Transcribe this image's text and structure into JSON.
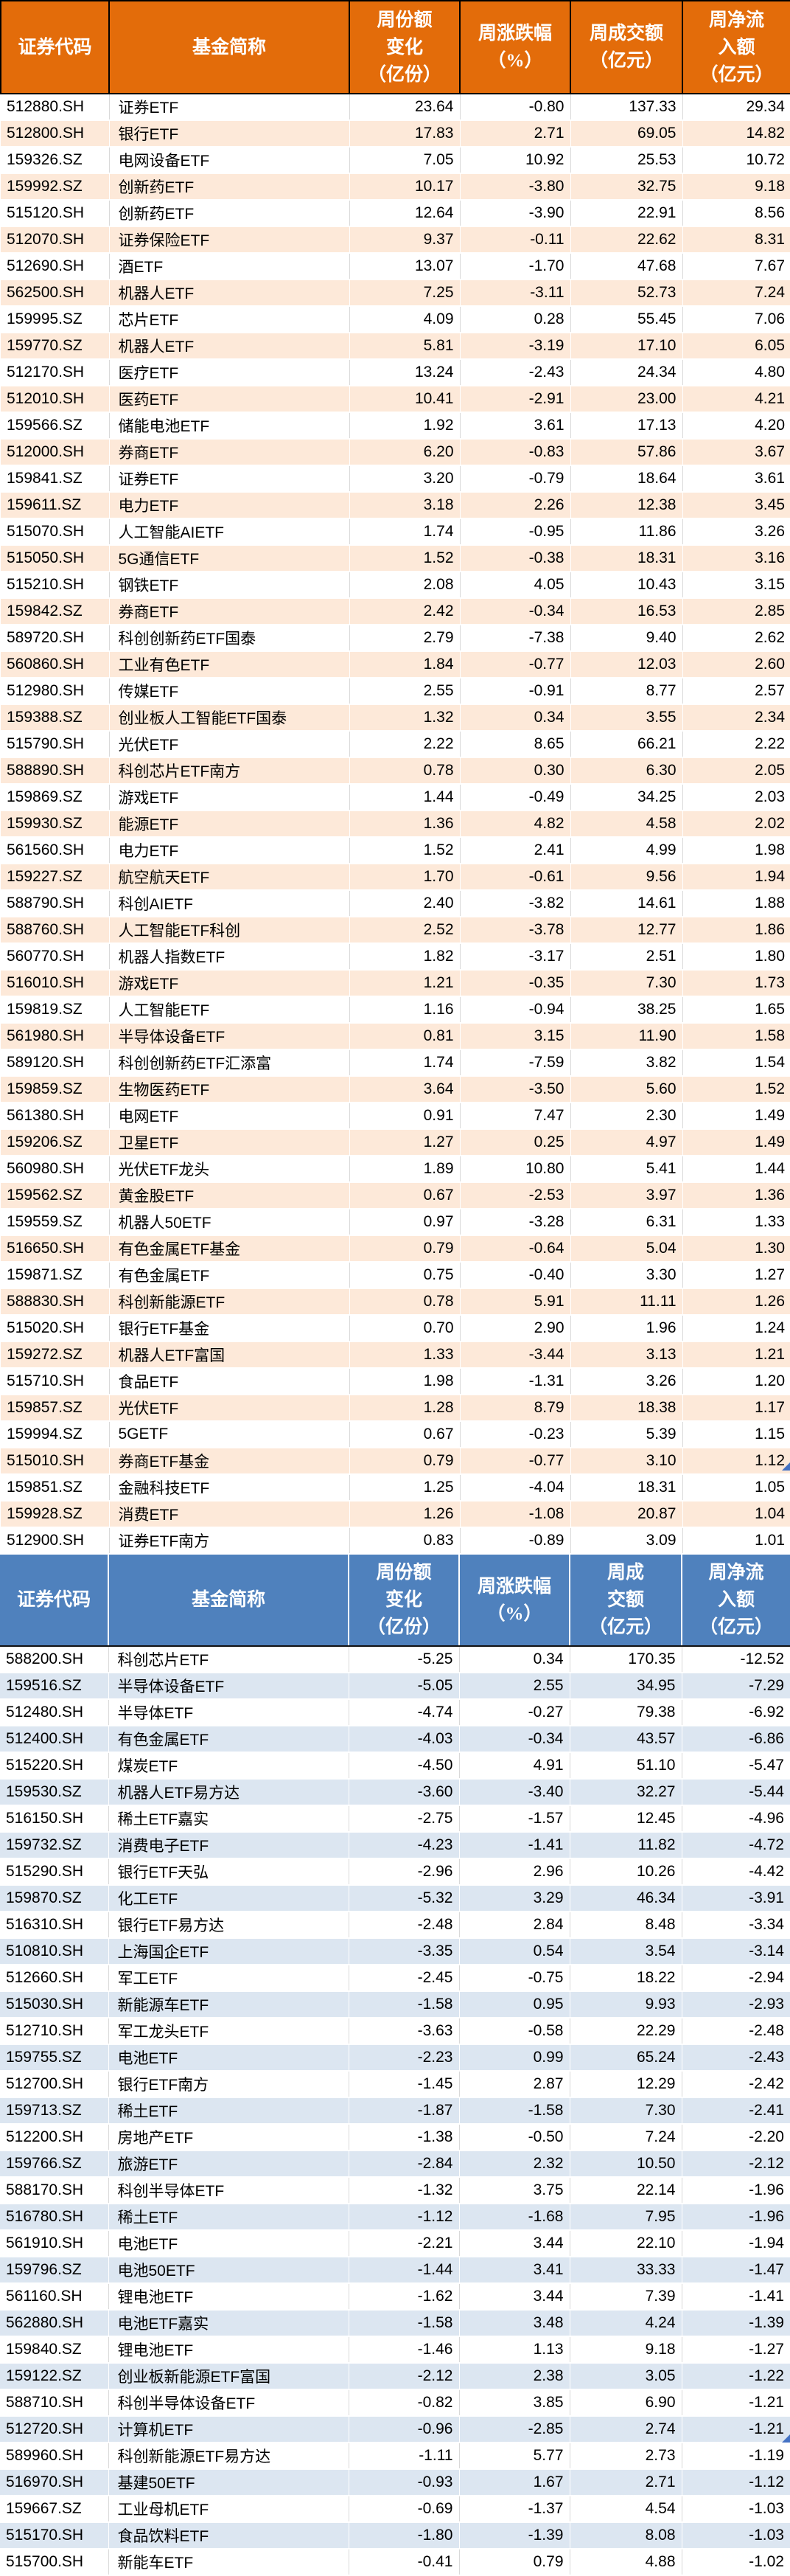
{
  "page": {
    "artifact_color": "#4472c4",
    "gridline_color": "#d9d9d9"
  },
  "tables": [
    {
      "id": "weekly-inflow-table",
      "colors": {
        "header_bg": "#e36c0a",
        "header_text": "#ffffff",
        "stripe": "#fde9d9"
      },
      "headers": [
        {
          "lines": [
            "证券代码"
          ]
        },
        {
          "lines": [
            "基金简称"
          ]
        },
        {
          "lines": [
            "周份额",
            "变化",
            "（亿份）"
          ]
        },
        {
          "lines": [
            "周涨跌幅",
            "（%）"
          ]
        },
        {
          "lines": [
            "周成交额",
            "（亿元）"
          ]
        },
        {
          "lines": [
            "周净流",
            "入额",
            "（亿元）"
          ]
        }
      ],
      "rows": [
        [
          "512880.SH",
          "证券ETF",
          "23.64",
          "-0.80",
          "137.33",
          "29.34"
        ],
        [
          "512800.SH",
          "银行ETF",
          "17.83",
          "2.71",
          "69.05",
          "14.82"
        ],
        [
          "159326.SZ",
          "电网设备ETF",
          "7.05",
          "10.92",
          "25.53",
          "10.72"
        ],
        [
          "159992.SZ",
          "创新药ETF",
          "10.17",
          "-3.80",
          "32.75",
          "9.18"
        ],
        [
          "515120.SH",
          "创新药ETF",
          "12.64",
          "-3.90",
          "22.91",
          "8.56"
        ],
        [
          "512070.SH",
          "证券保险ETF",
          "9.37",
          "-0.11",
          "22.62",
          "8.31"
        ],
        [
          "512690.SH",
          "酒ETF",
          "13.07",
          "-1.70",
          "47.68",
          "7.67"
        ],
        [
          "562500.SH",
          "机器人ETF",
          "7.25",
          "-3.11",
          "52.73",
          "7.24"
        ],
        [
          "159995.SZ",
          "芯片ETF",
          "4.09",
          "0.28",
          "55.45",
          "7.06"
        ],
        [
          "159770.SZ",
          "机器人ETF",
          "5.81",
          "-3.19",
          "17.10",
          "6.05"
        ],
        [
          "512170.SH",
          "医疗ETF",
          "13.24",
          "-2.43",
          "24.34",
          "4.80"
        ],
        [
          "512010.SH",
          "医药ETF",
          "10.41",
          "-2.91",
          "23.00",
          "4.21"
        ],
        [
          "159566.SZ",
          "储能电池ETF",
          "1.92",
          "3.61",
          "17.13",
          "4.20"
        ],
        [
          "512000.SH",
          "券商ETF",
          "6.20",
          "-0.83",
          "57.86",
          "3.67"
        ],
        [
          "159841.SZ",
          "证券ETF",
          "3.20",
          "-0.79",
          "18.64",
          "3.61"
        ],
        [
          "159611.SZ",
          "电力ETF",
          "3.18",
          "2.26",
          "12.38",
          "3.45"
        ],
        [
          "515070.SH",
          "人工智能AIETF",
          "1.74",
          "-0.95",
          "11.86",
          "3.26"
        ],
        [
          "515050.SH",
          "5G通信ETF",
          "1.52",
          "-0.38",
          "18.31",
          "3.16"
        ],
        [
          "515210.SH",
          "钢铁ETF",
          "2.08",
          "4.05",
          "10.43",
          "3.15"
        ],
        [
          "159842.SZ",
          "券商ETF",
          "2.42",
          "-0.34",
          "16.53",
          "2.85"
        ],
        [
          "589720.SH",
          "科创创新药ETF国泰",
          "2.79",
          "-7.38",
          "9.40",
          "2.62"
        ],
        [
          "560860.SH",
          "工业有色ETF",
          "1.84",
          "-0.77",
          "12.03",
          "2.60"
        ],
        [
          "512980.SH",
          "传媒ETF",
          "2.55",
          "-0.91",
          "8.77",
          "2.57"
        ],
        [
          "159388.SZ",
          "创业板人工智能ETF国泰",
          "1.32",
          "0.34",
          "3.55",
          "2.34"
        ],
        [
          "515790.SH",
          "光伏ETF",
          "2.22",
          "8.65",
          "66.21",
          "2.22"
        ],
        [
          "588890.SH",
          "科创芯片ETF南方",
          "0.78",
          "0.30",
          "6.30",
          "2.05"
        ],
        [
          "159869.SZ",
          "游戏ETF",
          "1.44",
          "-0.49",
          "34.25",
          "2.03"
        ],
        [
          "159930.SZ",
          "能源ETF",
          "1.36",
          "4.82",
          "4.58",
          "2.02"
        ],
        [
          "561560.SH",
          "电力ETF",
          "1.52",
          "2.41",
          "4.99",
          "1.98"
        ],
        [
          "159227.SZ",
          "航空航天ETF",
          "1.70",
          "-0.61",
          "9.56",
          "1.94"
        ],
        [
          "588790.SH",
          "科创AIETF",
          "2.40",
          "-3.82",
          "14.61",
          "1.88"
        ],
        [
          "588760.SH",
          "人工智能ETF科创",
          "2.52",
          "-3.78",
          "12.77",
          "1.86"
        ],
        [
          "560770.SH",
          "机器人指数ETF",
          "1.82",
          "-3.17",
          "2.51",
          "1.80"
        ],
        [
          "516010.SH",
          "游戏ETF",
          "1.21",
          "-0.35",
          "7.30",
          "1.73"
        ],
        [
          "159819.SZ",
          "人工智能ETF",
          "1.16",
          "-0.94",
          "38.25",
          "1.65"
        ],
        [
          "561980.SH",
          "半导体设备ETF",
          "0.81",
          "3.15",
          "11.90",
          "1.58"
        ],
        [
          "589120.SH",
          "科创创新药ETF汇添富",
          "1.74",
          "-7.59",
          "3.82",
          "1.54"
        ],
        [
          "159859.SZ",
          "生物医药ETF",
          "3.64",
          "-3.50",
          "5.60",
          "1.52"
        ],
        [
          "561380.SH",
          "电网ETF",
          "0.91",
          "7.47",
          "2.30",
          "1.49"
        ],
        [
          "159206.SZ",
          "卫星ETF",
          "1.27",
          "0.25",
          "4.97",
          "1.49"
        ],
        [
          "560980.SH",
          "光伏ETF龙头",
          "1.89",
          "10.80",
          "5.41",
          "1.44"
        ],
        [
          "159562.SZ",
          "黄金股ETF",
          "0.67",
          "-2.53",
          "3.97",
          "1.36"
        ],
        [
          "159559.SZ",
          "机器人50ETF",
          "0.97",
          "-3.28",
          "6.31",
          "1.33"
        ],
        [
          "516650.SH",
          "有色金属ETF基金",
          "0.79",
          "-0.64",
          "5.04",
          "1.30"
        ],
        [
          "159871.SZ",
          "有色金属ETF",
          "0.75",
          "-0.40",
          "3.30",
          "1.27"
        ],
        [
          "588830.SH",
          "科创新能源ETF",
          "0.78",
          "5.91",
          "11.11",
          "1.26"
        ],
        [
          "515020.SH",
          "银行ETF基金",
          "0.70",
          "2.90",
          "1.96",
          "1.24"
        ],
        [
          "159272.SZ",
          "机器人ETF富国",
          "1.33",
          "-3.44",
          "3.13",
          "1.21"
        ],
        [
          "515710.SH",
          "食品ETF",
          "1.98",
          "-1.31",
          "3.26",
          "1.20"
        ],
        [
          "159857.SZ",
          "光伏ETF",
          "1.28",
          "8.79",
          "18.38",
          "1.17"
        ],
        [
          "159994.SZ",
          "5GETF",
          "0.67",
          "-0.23",
          "5.39",
          "1.15"
        ],
        [
          "515010.SH",
          "券商ETF基金",
          "0.79",
          "-0.77",
          "3.10",
          "1.12"
        ],
        [
          "159851.SZ",
          "金融科技ETF",
          "1.25",
          "-4.04",
          "18.31",
          "1.05"
        ],
        [
          "159928.SZ",
          "消费ETF",
          "1.26",
          "-1.08",
          "20.87",
          "1.04"
        ],
        [
          "512900.SH",
          "证券ETF南方",
          "0.83",
          "-0.89",
          "3.09",
          "1.01"
        ]
      ]
    },
    {
      "id": "weekly-outflow-table",
      "colors": {
        "header_bg": "#4f81bd",
        "header_text": "#ffffff",
        "stripe": "#dce6f1"
      },
      "headers": [
        {
          "lines": [
            "证券代码"
          ]
        },
        {
          "lines": [
            "基金简称"
          ]
        },
        {
          "lines": [
            "周份额",
            "变化",
            "（亿份）"
          ]
        },
        {
          "lines": [
            "周涨跌幅",
            "（%）"
          ]
        },
        {
          "lines": [
            "周成",
            "交额",
            "（亿元）"
          ]
        },
        {
          "lines": [
            "周净流",
            "入额",
            "（亿元）"
          ]
        }
      ],
      "rows": [
        [
          "588200.SH",
          "科创芯片ETF",
          "-5.25",
          "0.34",
          "170.35",
          "-12.52"
        ],
        [
          "159516.SZ",
          "半导体设备ETF",
          "-5.05",
          "2.55",
          "34.95",
          "-7.29"
        ],
        [
          "512480.SH",
          "半导体ETF",
          "-4.74",
          "-0.27",
          "79.38",
          "-6.92"
        ],
        [
          "512400.SH",
          "有色金属ETF",
          "-4.03",
          "-0.34",
          "43.57",
          "-6.86"
        ],
        [
          "515220.SH",
          "煤炭ETF",
          "-4.50",
          "4.91",
          "51.10",
          "-5.47"
        ],
        [
          "159530.SZ",
          "机器人ETF易方达",
          "-3.60",
          "-3.40",
          "32.27",
          "-5.44"
        ],
        [
          "516150.SH",
          "稀土ETF嘉实",
          "-2.75",
          "-1.57",
          "12.45",
          "-4.96"
        ],
        [
          "159732.SZ",
          "消费电子ETF",
          "-4.23",
          "-1.41",
          "11.82",
          "-4.72"
        ],
        [
          "515290.SH",
          "银行ETF天弘",
          "-2.96",
          "2.96",
          "10.26",
          "-4.42"
        ],
        [
          "159870.SZ",
          "化工ETF",
          "-5.32",
          "3.29",
          "46.34",
          "-3.91"
        ],
        [
          "516310.SH",
          "银行ETF易方达",
          "-2.48",
          "2.84",
          "8.48",
          "-3.34"
        ],
        [
          "510810.SH",
          "上海国企ETF",
          "-3.35",
          "0.54",
          "3.54",
          "-3.14"
        ],
        [
          "512660.SH",
          "军工ETF",
          "-2.45",
          "-0.75",
          "18.22",
          "-2.94"
        ],
        [
          "515030.SH",
          "新能源车ETF",
          "-1.58",
          "0.95",
          "9.93",
          "-2.93"
        ],
        [
          "512710.SH",
          "军工龙头ETF",
          "-3.63",
          "-0.58",
          "22.29",
          "-2.48"
        ],
        [
          "159755.SZ",
          "电池ETF",
          "-2.23",
          "0.99",
          "65.24",
          "-2.43"
        ],
        [
          "512700.SH",
          "银行ETF南方",
          "-1.45",
          "2.87",
          "12.29",
          "-2.42"
        ],
        [
          "159713.SZ",
          "稀土ETF",
          "-1.87",
          "-1.58",
          "7.30",
          "-2.41"
        ],
        [
          "512200.SH",
          "房地产ETF",
          "-1.38",
          "-0.50",
          "7.24",
          "-2.20"
        ],
        [
          "159766.SZ",
          "旅游ETF",
          "-2.84",
          "2.32",
          "10.50",
          "-2.12"
        ],
        [
          "588170.SH",
          "科创半导体ETF",
          "-1.32",
          "3.75",
          "22.14",
          "-1.96"
        ],
        [
          "516780.SH",
          "稀土ETF",
          "-1.12",
          "-1.68",
          "7.95",
          "-1.96"
        ],
        [
          "561910.SH",
          "电池ETF",
          "-2.21",
          "3.44",
          "22.10",
          "-1.94"
        ],
        [
          "159796.SZ",
          "电池50ETF",
          "-1.44",
          "3.41",
          "33.33",
          "-1.47"
        ],
        [
          "561160.SH",
          "锂电池ETF",
          "-1.62",
          "3.44",
          "7.39",
          "-1.41"
        ],
        [
          "562880.SH",
          "电池ETF嘉实",
          "-1.58",
          "3.48",
          "4.24",
          "-1.39"
        ],
        [
          "159840.SZ",
          "锂电池ETF",
          "-1.46",
          "1.13",
          "9.18",
          "-1.27"
        ],
        [
          "159122.SZ",
          "创业板新能源ETF富国",
          "-2.12",
          "2.38",
          "3.05",
          "-1.22"
        ],
        [
          "588710.SH",
          "科创半导体设备ETF",
          "-0.82",
          "3.85",
          "6.90",
          "-1.21"
        ],
        [
          "512720.SH",
          "计算机ETF",
          "-0.96",
          "-2.85",
          "2.74",
          "-1.21"
        ],
        [
          "589960.SH",
          "科创新能源ETF易方达",
          "-1.11",
          "5.77",
          "2.73",
          "-1.19"
        ],
        [
          "516970.SH",
          "基建50ETF",
          "-0.93",
          "1.67",
          "2.71",
          "-1.12"
        ],
        [
          "159667.SZ",
          "工业母机ETF",
          "-0.69",
          "-1.37",
          "4.54",
          "-1.03"
        ],
        [
          "515170.SH",
          "食品饮料ETF",
          "-1.80",
          "-1.39",
          "8.08",
          "-1.03"
        ],
        [
          "515700.SH",
          "新能车ETF",
          "-0.41",
          "0.79",
          "4.88",
          "-1.02"
        ]
      ]
    }
  ]
}
